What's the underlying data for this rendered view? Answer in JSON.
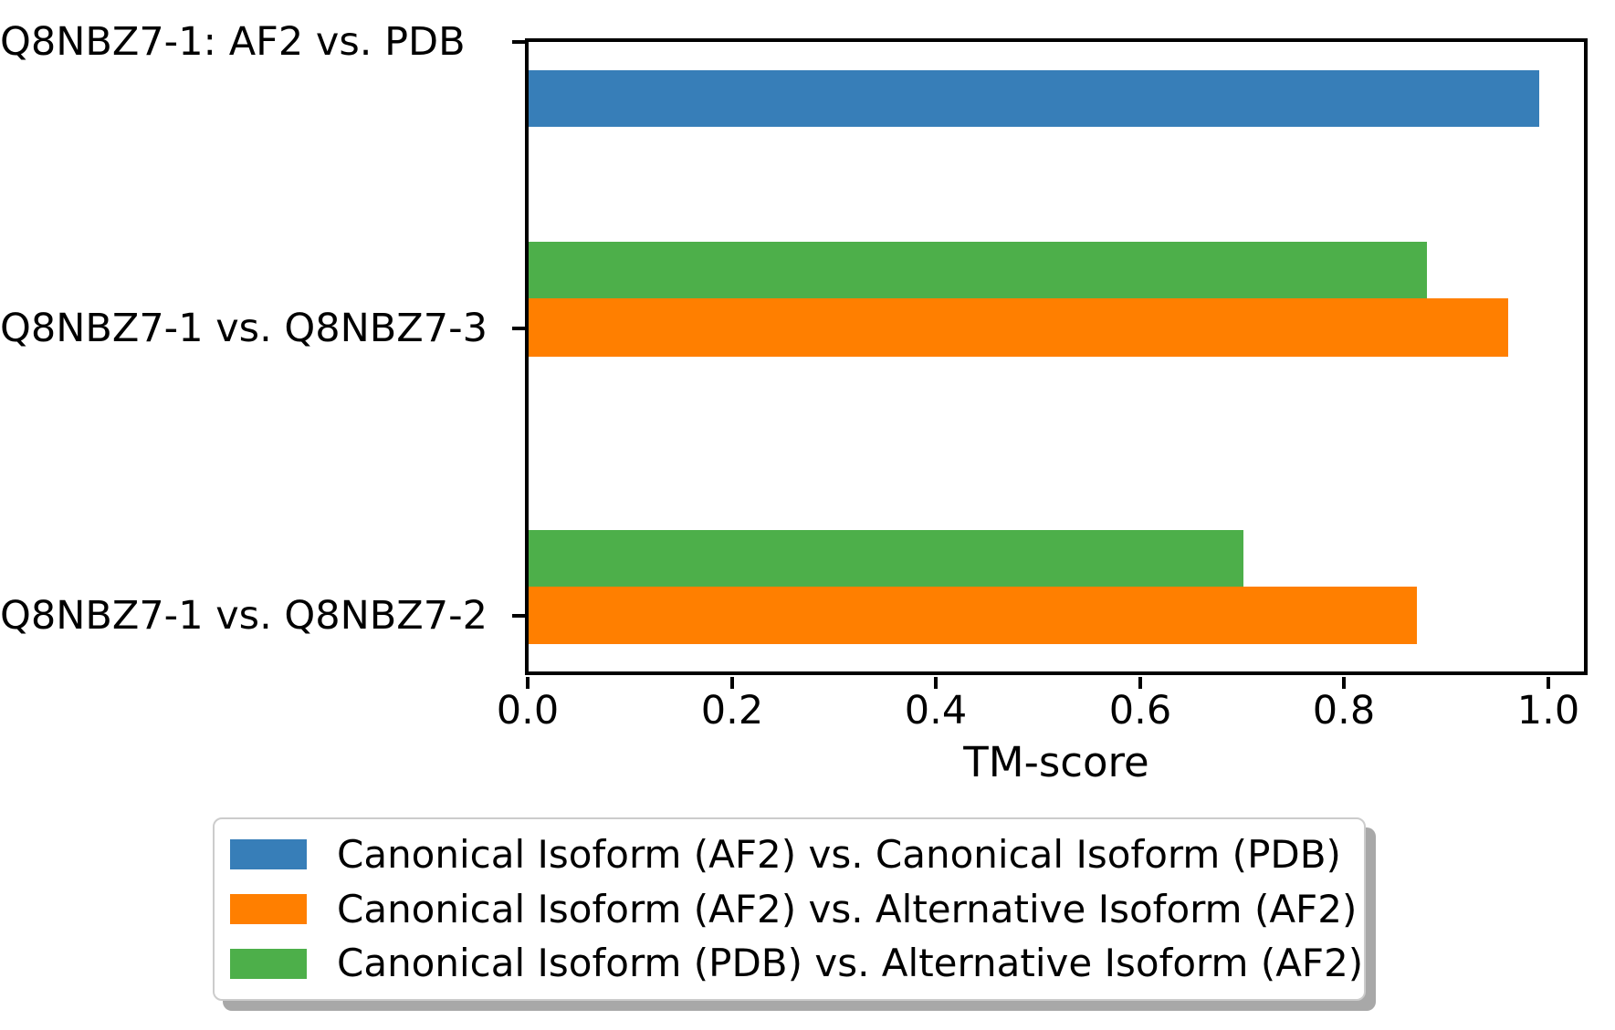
{
  "chart_data": {
    "type": "bar",
    "orientation": "horizontal",
    "title": "",
    "xlabel": "TM-score",
    "ylabel": "",
    "xlim": [
      0,
      1.04
    ],
    "grid": false,
    "legend_position": "bottom",
    "background_color": "#ffffff",
    "categories": [
      "Q8NBZ7-1: AF2 vs. PDB",
      "Q8NBZ7-1 vs. Q8NBZ7-3",
      "Q8NBZ7-1 vs. Q8NBZ7-2"
    ],
    "xticks": [
      "0.0",
      "0.2",
      "0.4",
      "0.6",
      "0.8",
      "1.0"
    ],
    "series": [
      {
        "name": "Canonical Isoform (AF2) vs. Canonical Isoform (PDB)",
        "color": "#377eb8",
        "values": [
          0.99,
          null,
          null
        ]
      },
      {
        "name": "Canonical Isoform (AF2) vs. Alternative Isoform (AF2)",
        "color": "#ff7f00",
        "values": [
          null,
          0.96,
          0.87
        ]
      },
      {
        "name": "Canonical Isoform (PDB) vs. Alternative Isoform (AF2)",
        "color": "#4daf4a",
        "values": [
          null,
          0.88,
          0.7
        ]
      }
    ]
  }
}
